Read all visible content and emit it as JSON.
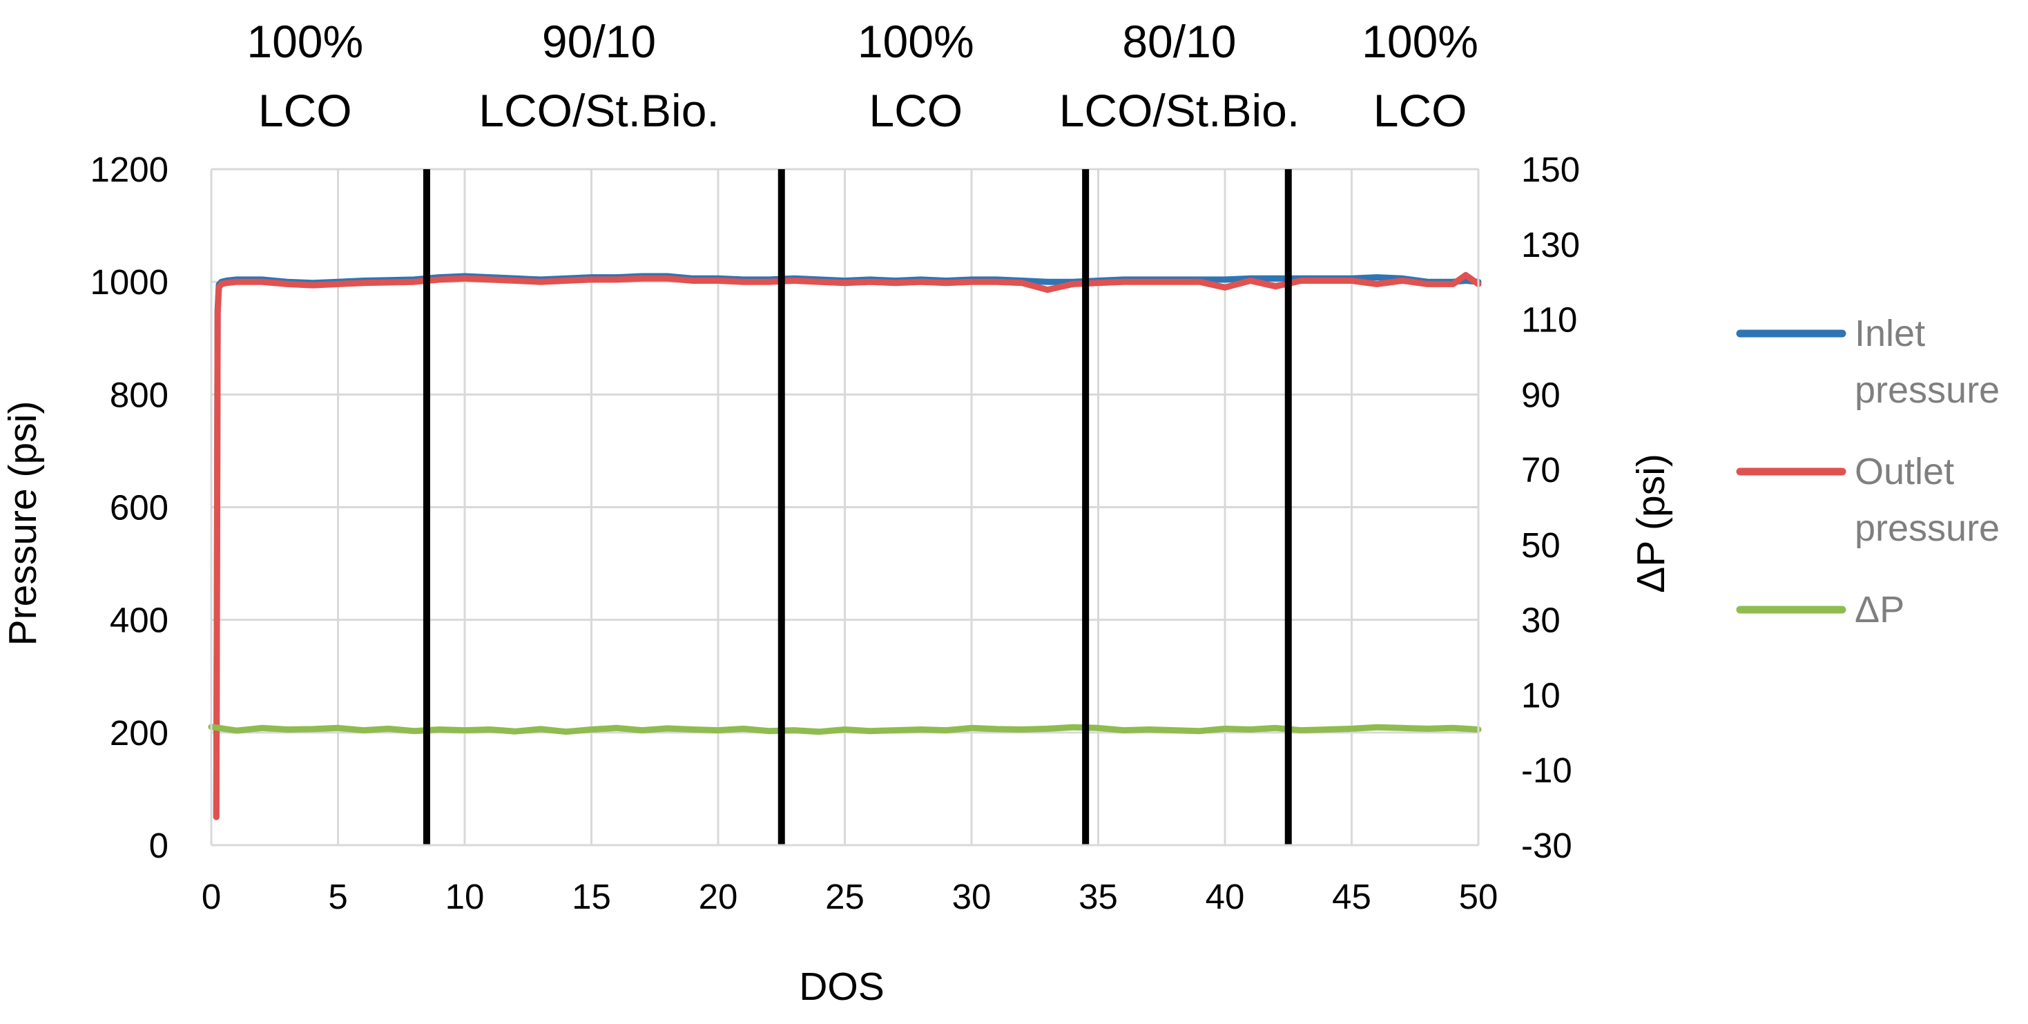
{
  "chart_data": {
    "type": "line",
    "title": "",
    "xlabel": "DOS",
    "ylabel": "Pressure (psi)",
    "y2label": "ΔP (psi)",
    "xlim": [
      0,
      50
    ],
    "ylim": [
      0,
      1200
    ],
    "y2lim": [
      -30,
      150
    ],
    "x_ticks": [
      "0",
      "5",
      "10",
      "15",
      "20",
      "25",
      "30",
      "35",
      "40",
      "45",
      "50"
    ],
    "y_ticks": [
      "0",
      "200",
      "400",
      "600",
      "800",
      "1000",
      "1200"
    ],
    "y2_ticks": [
      "-30",
      "-10",
      "10",
      "30",
      "50",
      "70",
      "90",
      "110",
      "130",
      "150"
    ],
    "grid": true,
    "legend_position": "right",
    "phase_dividers": [
      8.5,
      22.5,
      34.5,
      42.5
    ],
    "phases": [
      {
        "line1": "100%",
        "line2": "LCO",
        "x_center": 3.7
      },
      {
        "line1": "90/10",
        "line2": "LCO/St.Bio.",
        "x_center": 15.3
      },
      {
        "line1": "100%",
        "line2": "LCO",
        "x_center": 27.8
      },
      {
        "line1": "80/10",
        "line2": "LCO/St.Bio.",
        "x_center": 38.2
      },
      {
        "line1": "100%",
        "line2": "LCO",
        "x_center": 47.7
      }
    ],
    "series": [
      {
        "name": "Inlet pressure",
        "legend_line1": "Inlet",
        "legend_line2": "pressure",
        "color": "#2e75b6",
        "axis": "left",
        "x": [
          0.2,
          0.25,
          0.3,
          0.4,
          0.6,
          1,
          2,
          3,
          4,
          5,
          6,
          7,
          8,
          9,
          10,
          11,
          12,
          13,
          14,
          15,
          16,
          17,
          18,
          19,
          20,
          21,
          22,
          23,
          24,
          25,
          26,
          27,
          28,
          29,
          30,
          31,
          32,
          33,
          34,
          35,
          36,
          37,
          38,
          39,
          40,
          41,
          42,
          43,
          44,
          45,
          46,
          47,
          48,
          49,
          49.5,
          50
        ],
        "y": [
          50,
          950,
          995,
          1000,
          1002,
          1004,
          1004,
          1000,
          998,
          1000,
          1002,
          1003,
          1004,
          1008,
          1010,
          1008,
          1006,
          1004,
          1006,
          1008,
          1008,
          1010,
          1010,
          1006,
          1006,
          1004,
          1004,
          1006,
          1004,
          1002,
          1004,
          1002,
          1004,
          1002,
          1004,
          1004,
          1002,
          1000,
          1000,
          1002,
          1004,
          1004,
          1004,
          1004,
          1004,
          1006,
          1006,
          1006,
          1006,
          1006,
          1008,
          1006,
          1000,
          1000,
          1002,
          1000
        ]
      },
      {
        "name": "Outlet pressure",
        "legend_line1": "Outlet",
        "legend_line2": "pressure",
        "color": "#e0524f",
        "axis": "left",
        "x": [
          0.2,
          0.25,
          0.3,
          0.4,
          0.6,
          1,
          2,
          3,
          4,
          5,
          6,
          7,
          8,
          9,
          10,
          11,
          12,
          13,
          14,
          15,
          16,
          17,
          18,
          19,
          20,
          21,
          22,
          23,
          24,
          25,
          26,
          27,
          28,
          29,
          30,
          31,
          32,
          33,
          34,
          35,
          36,
          37,
          38,
          39,
          40,
          41,
          42,
          43,
          44,
          45,
          46,
          47,
          48,
          49,
          49.5,
          50
        ],
        "y": [
          50,
          945,
          990,
          996,
          998,
          1000,
          1000,
          996,
          994,
          996,
          998,
          999,
          1000,
          1004,
          1006,
          1004,
          1002,
          1000,
          1002,
          1004,
          1004,
          1006,
          1006,
          1002,
          1002,
          1000,
          1000,
          1002,
          1000,
          998,
          1000,
          998,
          1000,
          998,
          1000,
          1000,
          998,
          986,
          996,
          998,
          1000,
          1000,
          1000,
          1000,
          990,
          1002,
          992,
          1002,
          1002,
          1002,
          996,
          1002,
          996,
          996,
          1012,
          996
        ]
      },
      {
        "name": "ΔP",
        "legend_line1": "ΔP",
        "legend_line2": "",
        "color": "#8fbc4f",
        "axis": "right",
        "x": [
          0,
          1,
          2,
          3,
          4,
          5,
          6,
          7,
          8,
          9,
          10,
          11,
          12,
          13,
          14,
          15,
          16,
          17,
          18,
          19,
          20,
          21,
          22,
          23,
          24,
          25,
          26,
          27,
          28,
          29,
          30,
          31,
          32,
          33,
          34,
          35,
          36,
          37,
          38,
          39,
          40,
          41,
          42,
          43,
          44,
          45,
          46,
          47,
          48,
          49,
          50
        ],
        "y": [
          1.5,
          0.5,
          1.2,
          0.8,
          0.9,
          1.2,
          0.6,
          1.0,
          0.4,
          0.8,
          0.6,
          0.8,
          0.3,
          0.9,
          0.2,
          0.8,
          1.2,
          0.6,
          1.1,
          0.8,
          0.6,
          1.0,
          0.4,
          0.6,
          0.2,
          0.8,
          0.4,
          0.6,
          0.8,
          0.6,
          1.2,
          0.9,
          0.8,
          1.0,
          1.4,
          1.2,
          0.6,
          0.8,
          0.6,
          0.4,
          1.0,
          0.8,
          1.2,
          0.6,
          0.8,
          1.0,
          1.4,
          1.2,
          1.0,
          1.2,
          0.8
        ]
      }
    ]
  }
}
